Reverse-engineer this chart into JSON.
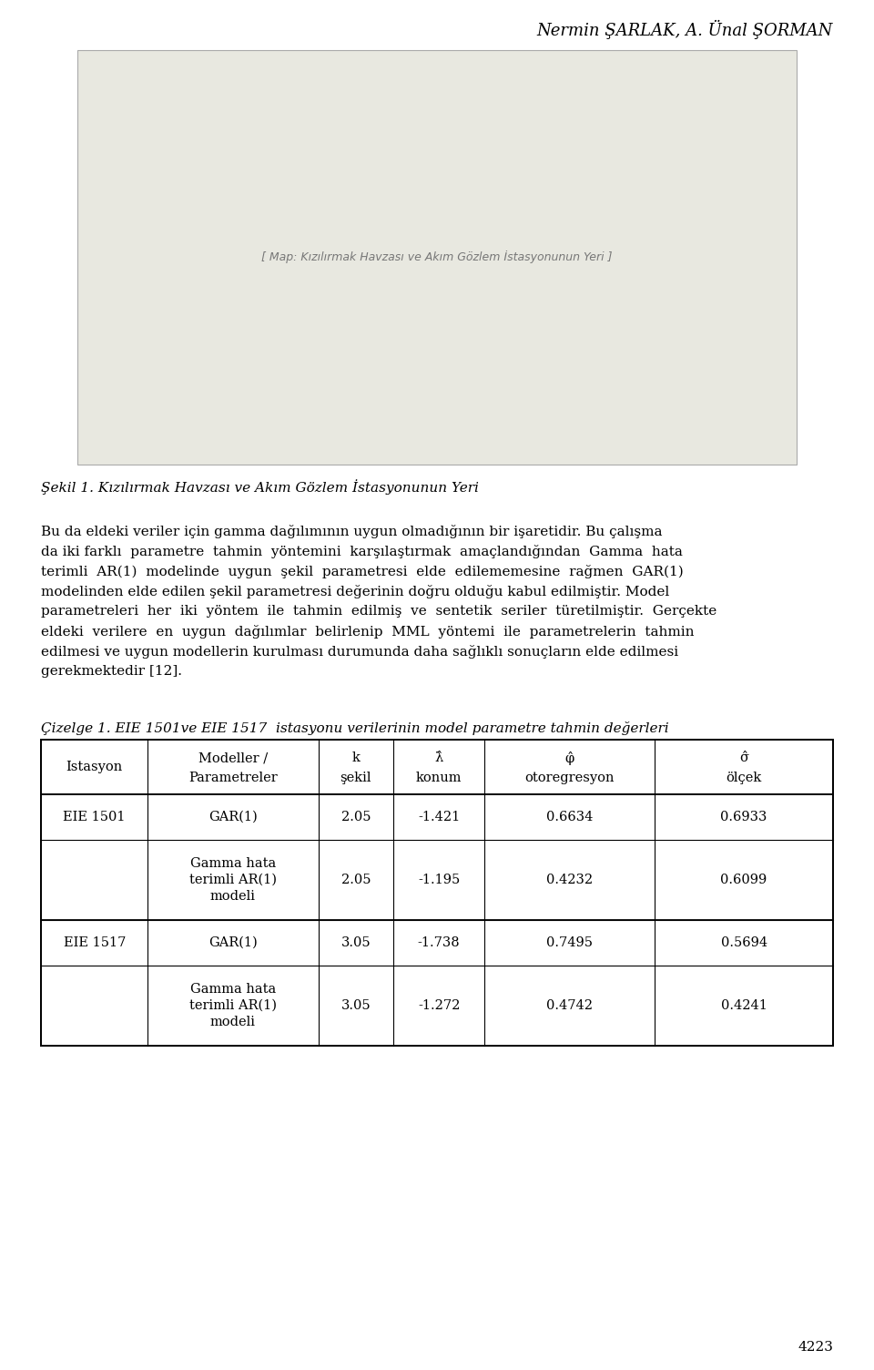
{
  "header_text": "Nermin ŞARLAK, A. Ünal ŞORMAN",
  "figure_caption": "Şekil 1. Kızılırmak Havzası ve Akım Gözlem İstasyonunun Yeri",
  "body_lines": [
    "Bu da eldeki veriler için gamma dağılımının uygun olmadığının bir işaretidir. Bu çalışma",
    "da iki farklı  parametre  tahmin  yöntemini  karşılaştırmak  amaçlandığından  Gamma  hata",
    "terimli  AR(1)  modelinde  uygun  şekil  parametresi  elde  edilememesine  rağmen  GAR(1)",
    "modelinden elde edilen şekil parametresi değerinin doğru olduğu kabul edilmiştir. Model",
    "parametreleri  her  iki  yöntem  ile  tahmin  edilmiş  ve  sentetik  seriler  türetilmiştir.  Gerçekte",
    "eldeki  verilere  en  uygun  dağılımlar  belirlenip  MML  yöntemi  ile  parametrelerin  tahmin",
    "edilmesi ve uygun modellerin kurulması durumunda daha sağlıklı sonuçların elde edilmesi",
    "gerekmektedir [12]."
  ],
  "table_caption": "Çizelge 1. EIE 1501ve EIE 1517  istasyonu verilerinin model parametre tahmin değerleri",
  "col_headers_line1": [
    "Istasyon",
    "Modeller /",
    "k",
    "λ̂",
    "φ̂",
    "σ̂"
  ],
  "col_headers_line2": [
    "",
    "Parametreler",
    "şekil",
    "konum",
    "otoregresyon",
    "ölçek"
  ],
  "table_data": [
    [
      "EIE 1501",
      "GAR(1)",
      "2.05",
      "-1.421",
      "0.6634",
      "0.6933"
    ],
    [
      "",
      "Gamma hata\nterimli AR(1)\nmodeli",
      "2.05",
      "-1.195",
      "0.4232",
      "0.6099"
    ],
    [
      "EIE 1517",
      "GAR(1)",
      "3.05",
      "-1.738",
      "0.7495",
      "0.5694"
    ],
    [
      "",
      "Gamma hata\nterimli AR(1)\nmodeli",
      "3.05",
      "-1.272",
      "0.4742",
      "0.4241"
    ]
  ],
  "page_number": "4223",
  "bg_color": "#ffffff",
  "text_color": "#000000",
  "map_placeholder_color": "#e8e8e0",
  "header_fontsize": 13,
  "body_fontsize": 11,
  "table_fontsize": 10.5
}
